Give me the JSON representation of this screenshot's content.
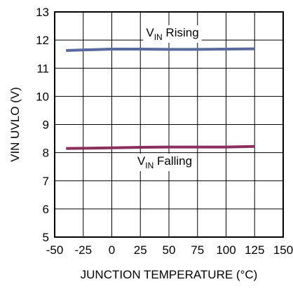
{
  "chart_data": {
    "type": "line",
    "xlabel": "JUNCTION TEMPERATURE (°C)",
    "ylabel": "VIN UVLO (V)",
    "xlim": [
      -50,
      150
    ],
    "ylim": [
      5,
      13
    ],
    "xticks": [
      -50,
      -25,
      0,
      25,
      50,
      75,
      100,
      125,
      150
    ],
    "yticks": [
      5,
      6,
      7,
      8,
      9,
      10,
      11,
      12,
      13
    ],
    "grid": true,
    "series": [
      {
        "name_main": "V",
        "name_sub": "IN",
        "name_rest": " Rising",
        "color": "#5a6a9e",
        "x": [
          -40,
          0,
          25,
          50,
          75,
          100,
          125
        ],
        "y": [
          11.63,
          11.68,
          11.68,
          11.67,
          11.67,
          11.68,
          11.69
        ]
      },
      {
        "name_main": "V",
        "name_sub": "IN",
        "name_rest": " Falling",
        "color": "#8b2f5e",
        "x": [
          -40,
          0,
          25,
          50,
          75,
          100,
          125
        ],
        "y": [
          8.15,
          8.17,
          8.19,
          8.2,
          8.2,
          8.2,
          8.22
        ]
      }
    ]
  }
}
